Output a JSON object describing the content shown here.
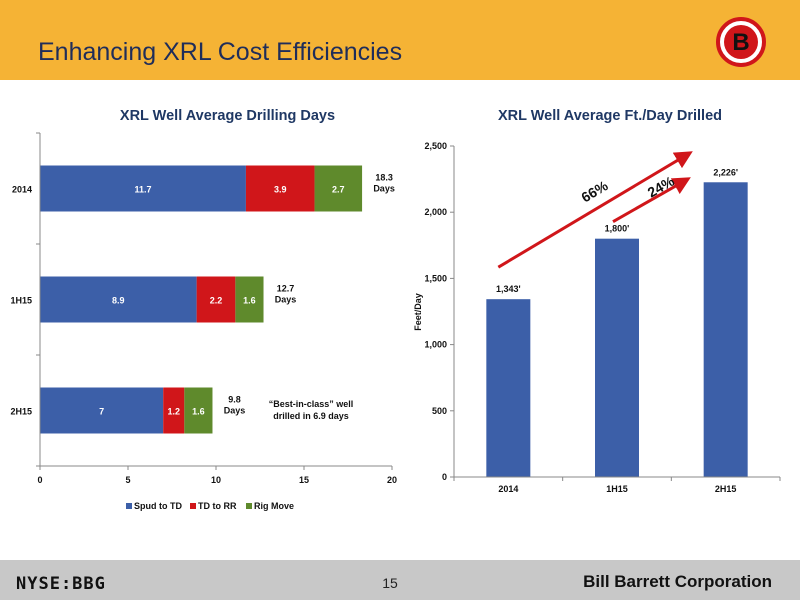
{
  "header": {
    "title": "Enhancing XRL Cost Efficiencies",
    "logo_letter": "B"
  },
  "footer": {
    "ticker": "NYSE:BBG",
    "page_number": "15",
    "company": "Bill Barrett Corporation"
  },
  "colors": {
    "header_bg": "#f5b335",
    "spud": "#3c5fa8",
    "td": "#d0161a",
    "rig": "#5f8a2c",
    "bar": "#3c5fa8",
    "arrow": "#d0161a"
  },
  "chart_data": [
    {
      "type": "bar",
      "orientation": "horizontal",
      "stacked": true,
      "title": "XRL Well Average Drilling Days",
      "categories": [
        "2014",
        "1H15",
        "2H15"
      ],
      "series": [
        {
          "name": "Spud to TD",
          "values": [
            11.7,
            8.9,
            7.0
          ]
        },
        {
          "name": "TD to RR",
          "values": [
            3.9,
            2.2,
            1.2
          ]
        },
        {
          "name": "Rig Move",
          "values": [
            2.7,
            1.6,
            1.6
          ]
        }
      ],
      "total_labels": [
        {
          "lines": [
            "18.3",
            "Days"
          ]
        },
        {
          "lines": [
            "12.7",
            "Days"
          ]
        },
        {
          "lines": [
            "9.8",
            "Days"
          ]
        }
      ],
      "annotation": {
        "lines": [
          "“Best-in-class” well",
          "drilled in 6.9 days"
        ]
      },
      "xlim": [
        0,
        20
      ],
      "xticks": [
        "0",
        "5",
        "10",
        "15",
        "20"
      ],
      "legend_position": "bottom"
    },
    {
      "type": "bar",
      "title": "XRL Well Average Ft./Day Drilled",
      "categories": [
        "2014",
        "1H15",
        "2H15"
      ],
      "values": [
        1343,
        1800,
        2226
      ],
      "value_labels": [
        "1,343'",
        "1,800'",
        "2,226'"
      ],
      "ylabel": "Feet/Day",
      "ylim": [
        0,
        2500
      ],
      "yticks": [
        "0",
        "500",
        "1,000",
        "1,500",
        "2,000",
        "2,500"
      ],
      "arrows": [
        {
          "from": "2014",
          "to": "2H15",
          "label": "66%"
        },
        {
          "from": "1H15",
          "to": "2H15",
          "label": "24%"
        }
      ]
    }
  ]
}
